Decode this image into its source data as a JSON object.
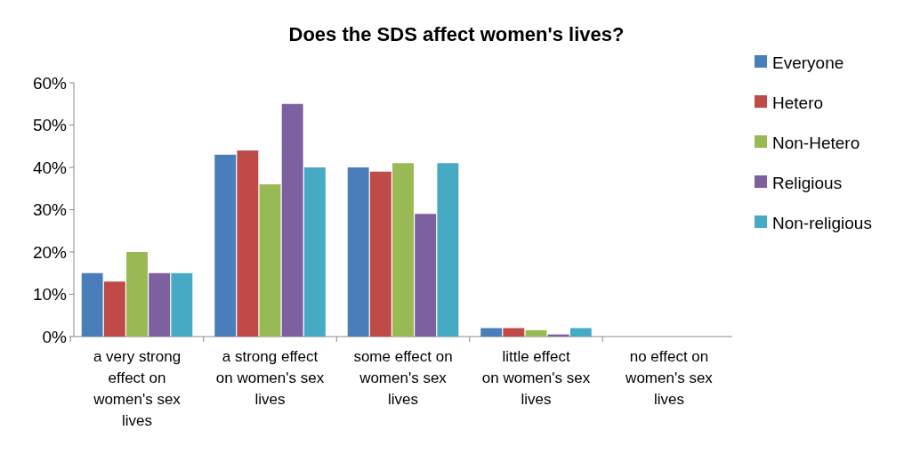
{
  "chart_data": {
    "type": "bar",
    "title": "Does the SDS affect women's lives?",
    "categories": [
      "a very strong effect on women's sex lives",
      "a strong effect on women's sex lives",
      "some effect on women's sex lives",
      "little effect on women's sex lives",
      "no effect on women's sex lives"
    ],
    "series": [
      {
        "name": "Everyone",
        "color": "#4a7ebb",
        "values": [
          15,
          43,
          40,
          2,
          0
        ]
      },
      {
        "name": "Hetero",
        "color": "#be4b48",
        "values": [
          13,
          44,
          39,
          2,
          0
        ]
      },
      {
        "name": "Non-Hetero",
        "color": "#98b954",
        "values": [
          20,
          36,
          41,
          1.5,
          0
        ]
      },
      {
        "name": "Religious",
        "color": "#7d60a0",
        "values": [
          15,
          55,
          29,
          0.5,
          0
        ]
      },
      {
        "name": "Non-religious",
        "color": "#46aac5",
        "values": [
          15,
          40,
          41,
          2,
          0
        ]
      }
    ],
    "ylim": [
      0,
      60
    ],
    "yticks": [
      {
        "value": 0,
        "label": "0%"
      },
      {
        "value": 10,
        "label": "10%"
      },
      {
        "value": 20,
        "label": "20%"
      },
      {
        "value": 30,
        "label": "30%"
      },
      {
        "value": 40,
        "label": "40%"
      },
      {
        "value": 50,
        "label": "50%"
      },
      {
        "value": 60,
        "label": "60%"
      }
    ],
    "grid": false,
    "legend": "right"
  }
}
